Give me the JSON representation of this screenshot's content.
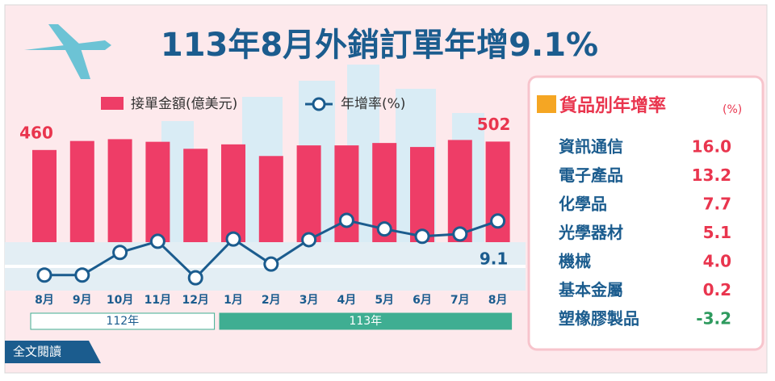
{
  "chart_data": {
    "type": "bar",
    "title": "113年8月外銷訂單年增9.1%",
    "categories": [
      "8月",
      "9月",
      "10月",
      "11月",
      "12月",
      "1月",
      "2月",
      "3月",
      "4月",
      "5月",
      "6月",
      "7月",
      "8月"
    ],
    "series": [
      {
        "name": "接單金額(億美元)",
        "type": "bar",
        "axis": "y",
        "color": "#ee3d67",
        "values": [
          460,
          505,
          514,
          501,
          466,
          488,
          430,
          483,
          483,
          495,
          475,
          510,
          502
        ]
      },
      {
        "name": "年增率(%)",
        "type": "line",
        "axis": "y2",
        "color": "#1b5c8e",
        "values": [
          -14.6,
          -14.6,
          -4.7,
          0.2,
          -15.8,
          1.2,
          -9.8,
          0.9,
          9.4,
          5.6,
          2.4,
          3.4,
          9.1
        ]
      }
    ],
    "labeled_points": [
      [
        0,
        0
      ],
      [
        0,
        12
      ],
      [
        1,
        12
      ]
    ],
    "ylim": [
      0,
      560
    ],
    "y2lim": [
      -20,
      20
    ],
    "years": [
      {
        "label": "112年",
        "span": 5
      },
      {
        "label": "113年",
        "span": 8
      }
    ],
    "side_panel": {
      "title": "貨品別年增率",
      "unit": "(%)",
      "rows": [
        [
          "資訊通信",
          "16.0"
        ],
        [
          "電子產品",
          "13.2"
        ],
        [
          "化學品",
          "7.7"
        ],
        [
          "光學器材",
          "5.1"
        ],
        [
          "機械",
          "4.0"
        ],
        [
          "基本金屬",
          "0.2"
        ],
        [
          "塑橡膠製品",
          "-3.2"
        ]
      ]
    },
    "button": "全文閱讀"
  }
}
